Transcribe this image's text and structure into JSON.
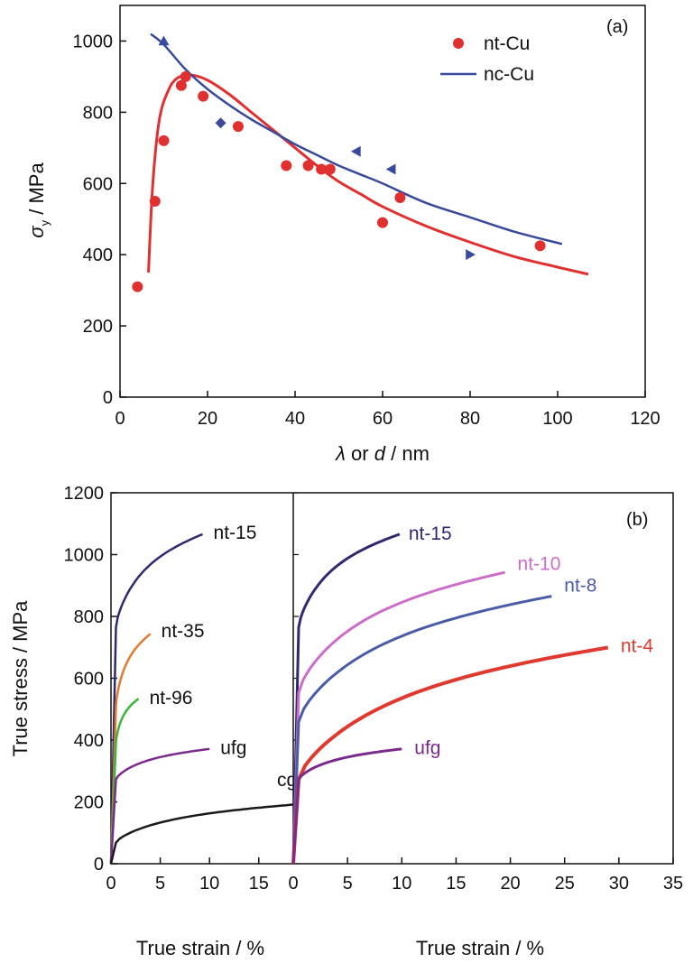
{
  "chart_data": [
    {
      "panel": "(a)",
      "type": "scatter",
      "xlabel": {
        "sym": "λ",
        "or": "or",
        "sym2": "d",
        "unit": "/ nm"
      },
      "ylabel": {
        "sym": "σ",
        "sub": "y",
        "unit": "/ MPa"
      },
      "xlim": [
        0,
        120
      ],
      "ylim": [
        0,
        1100
      ],
      "xticks": [
        "0",
        "20",
        "40",
        "60",
        "80",
        "100",
        "120"
      ],
      "yticks": [
        "0",
        "200",
        "400",
        "600",
        "800",
        "1000"
      ],
      "legend": {
        "placement": "top-right",
        "entries": [
          "nt-Cu",
          "nc-Cu"
        ]
      },
      "colors": {
        "nt": "#e03030",
        "nc": "#3a4a9a"
      },
      "series": [
        {
          "name": "nt-Cu",
          "kind": "scatter",
          "points": [
            [
              4,
              310
            ],
            [
              8,
              550
            ],
            [
              10,
              720
            ],
            [
              14,
              875
            ],
            [
              15,
              900
            ],
            [
              19,
              845
            ],
            [
              27,
              760
            ],
            [
              38,
              650
            ],
            [
              43,
              650
            ],
            [
              46,
              640
            ],
            [
              48,
              640
            ],
            [
              60,
              490
            ],
            [
              64,
              560
            ],
            [
              96,
              425
            ]
          ]
        },
        {
          "name": "nt-Cu",
          "kind": "fit",
          "points": [
            [
              6.5,
              350
            ],
            [
              7.5,
              600
            ],
            [
              9,
              780
            ],
            [
              11,
              860
            ],
            [
              13,
              895
            ],
            [
              16,
              905
            ],
            [
              20,
              890
            ],
            [
              25,
              850
            ],
            [
              30,
              800
            ],
            [
              35,
              750
            ],
            [
              40,
              700
            ],
            [
              45,
              650
            ],
            [
              50,
              605
            ],
            [
              55,
              570
            ],
            [
              60,
              535
            ],
            [
              70,
              480
            ],
            [
              80,
              435
            ],
            [
              90,
              395
            ],
            [
              100,
              365
            ],
            [
              107,
              345
            ]
          ]
        },
        {
          "name": "nc-Cu",
          "kind": "fit",
          "points": [
            [
              7,
              1020
            ],
            [
              10,
              990
            ],
            [
              15,
              920
            ],
            [
              20,
              865
            ],
            [
              25,
              820
            ],
            [
              30,
              780
            ],
            [
              35,
              745
            ],
            [
              40,
              710
            ],
            [
              45,
              680
            ],
            [
              50,
              650
            ],
            [
              55,
              625
            ],
            [
              60,
              600
            ],
            [
              70,
              545
            ],
            [
              80,
              505
            ],
            [
              90,
              465
            ],
            [
              101,
              430
            ]
          ]
        },
        {
          "name": "",
          "kind": "triangle-markers",
          "points": [
            [
              10,
              1000,
              "up"
            ],
            [
              23,
              770,
              "diamond"
            ],
            [
              54,
              690,
              "left"
            ],
            [
              62,
              640,
              "left"
            ],
            [
              80,
              400,
              "right"
            ]
          ]
        }
      ]
    },
    {
      "panel": "(b)",
      "type": "line",
      "ylabel": "True stress / MPa",
      "xlabel_left": "True strain / %",
      "xlabel_right": "True strain / %",
      "ylim": [
        0,
        1200
      ],
      "yticks": [
        "0",
        "200",
        "400",
        "600",
        "800",
        "1000",
        "1200"
      ],
      "left_xlim": [
        0,
        18.5
      ],
      "left_xticks": [
        "0",
        "5",
        "10",
        "15",
        "0"
      ],
      "right_xlim": [
        0,
        35
      ],
      "right_xticks": [
        "5",
        "10",
        "15",
        "20",
        "25",
        "30",
        "35"
      ],
      "left_curves": [
        {
          "name": "nt-15",
          "color": "#2e2a6e",
          "yield": 900,
          "final": 1068,
          "end": 9.3,
          "label": "nt-15"
        },
        {
          "name": "nt-35",
          "color": "#e07a30",
          "yield": 600,
          "final": 745,
          "end": 4.0,
          "label": "nt-35"
        },
        {
          "name": "nt-96",
          "color": "#3cb43c",
          "yield": 460,
          "final": 535,
          "end": 2.8,
          "label": "nt-96"
        },
        {
          "name": "ufg",
          "color": "#7a2a8a",
          "yield": 320,
          "final": 372,
          "end": 10.0,
          "label": "ufg"
        },
        {
          "name": "cg",
          "color": "#1a1a1a",
          "yield": 80,
          "final": 192,
          "end": 18.5,
          "label": "cg"
        }
      ],
      "right_curves": [
        {
          "name": "nt-15",
          "color": "#2e2a6e",
          "yield": 900,
          "final": 1068,
          "end": 9.8,
          "label": "nt-15"
        },
        {
          "name": "nt-10",
          "color": "#cc6ec8",
          "yield": 650,
          "final": 945,
          "end": 19.5,
          "label": "nt-10"
        },
        {
          "name": "nt-8",
          "color": "#4a5ca8",
          "yield": 540,
          "final": 868,
          "end": 23.8,
          "label": "nt-8"
        },
        {
          "name": "nt-4",
          "color": "#e03a30",
          "yield": 320,
          "final": 702,
          "end": 29.0,
          "label": "nt-4"
        },
        {
          "name": "ufg",
          "color": "#7a2a8a",
          "yield": 320,
          "final": 372,
          "end": 10.0,
          "label": "ufg"
        }
      ]
    }
  ]
}
